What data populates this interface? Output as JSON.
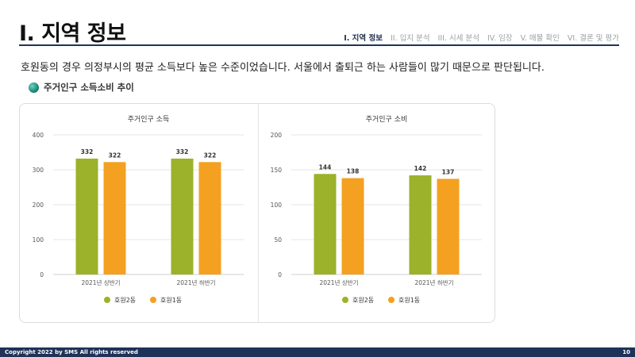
{
  "header": {
    "title": "I. 지역 정보",
    "nav": [
      "I. 지역 정보",
      "II. 입지 분석",
      "III. 시세 분석",
      "IV. 임장",
      "V. 매물 확인",
      "VI. 결론 및 평가"
    ],
    "active_index": 0
  },
  "summary": "호원동의 경우 의정부시의 평균 소득보다 높은 수준이었습니다. 서울에서 출퇴근 하는 사람들이 많기 때문으로 판단됩니다.",
  "section": {
    "title": "주거인구 소득소비 추이"
  },
  "colors": {
    "series1": "#9bb22a",
    "series2": "#f4a020",
    "navy": "#1f3358"
  },
  "chart_data": [
    {
      "type": "bar",
      "title": "주거인구 소득",
      "categories": [
        "2021년 상반기",
        "2021년 하반기"
      ],
      "series": [
        {
          "name": "호원2동",
          "values": [
            332,
            332
          ]
        },
        {
          "name": "호원1동",
          "values": [
            322,
            322
          ]
        }
      ],
      "ylim": [
        0,
        400
      ],
      "yticks": [
        0,
        100,
        200,
        300,
        400
      ],
      "xlabel": "",
      "ylabel": "",
      "legend": "bottom"
    },
    {
      "type": "bar",
      "title": "주거인구 소비",
      "categories": [
        "2021년 상반기",
        "2021년 하반기"
      ],
      "series": [
        {
          "name": "호원2동",
          "values": [
            144,
            142
          ]
        },
        {
          "name": "호원1동",
          "values": [
            138,
            137
          ]
        }
      ],
      "ylim": [
        0,
        200
      ],
      "yticks": [
        0,
        50,
        100,
        150,
        200
      ],
      "xlabel": "",
      "ylabel": "",
      "legend": "bottom"
    }
  ],
  "footer": {
    "copyright": "Copyright 2022 by SMS All rights reserved",
    "page": "10"
  }
}
